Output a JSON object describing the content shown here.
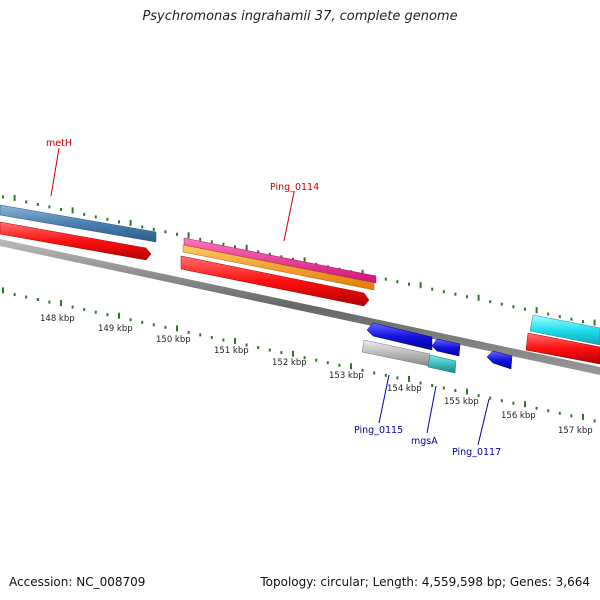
{
  "title": "Psychromonas ingrahamii 37, complete genome",
  "footer": {
    "accession": "Accession: NC_008709",
    "summary": "Topology: circular; Length: 4,559,598 bp; Genes: 3,664"
  },
  "ticks": [
    {
      "label": "148 kbp"
    },
    {
      "label": "149 kbp"
    },
    {
      "label": "150 kbp"
    },
    {
      "label": "151 kbp"
    },
    {
      "label": "152 kbp"
    },
    {
      "label": "153 kbp"
    },
    {
      "label": "154 kbp"
    },
    {
      "label": "155 kbp"
    },
    {
      "label": "156 kbp"
    },
    {
      "label": "157 kbp"
    }
  ],
  "gene_labels": [
    {
      "id": "metH",
      "text": "metH",
      "color": "#cc0000"
    },
    {
      "id": "ping-0114",
      "text": "Ping_0114",
      "color": "#cc0000"
    },
    {
      "id": "ping-0115",
      "text": "Ping_0115",
      "color": "#0000aa"
    },
    {
      "id": "mgsa",
      "text": "mgsA",
      "color": "#0000aa"
    },
    {
      "id": "ping-0117",
      "text": "Ping_0117",
      "color": "#0000aa"
    }
  ],
  "colors": {
    "cds_red": "#ff1010",
    "steel_blue": "#4a7fb0",
    "magenta": "#ee2288",
    "orange": "#ff9900",
    "cyan": "#22ddee",
    "blue": "#1414dd",
    "gray": "#bbbbbb",
    "teal": "#20bbbb",
    "backbone": "#777777",
    "tick_green": "#2a7a2a"
  }
}
